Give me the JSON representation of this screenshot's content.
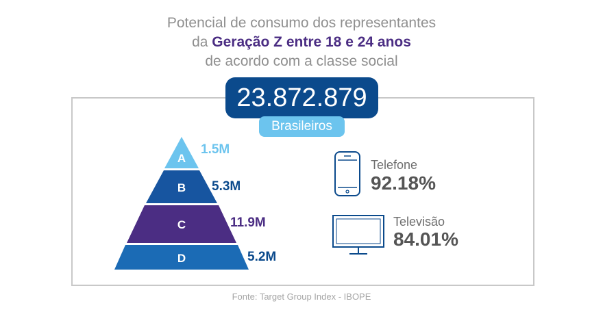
{
  "title": {
    "line1": "Potencial de consumo dos representantes",
    "line2_prefix": "da ",
    "line2_highlight": "Geração Z entre 18 e 24 anos",
    "line3": "de acordo com a classe social"
  },
  "total": {
    "value": "23.872.879",
    "label": "Brasileiros"
  },
  "pyramid": [
    {
      "class": "A",
      "value": "1.5M",
      "color": "#6cc4ee"
    },
    {
      "class": "B",
      "value": "5.3M",
      "color": "#1755a0"
    },
    {
      "class": "C",
      "value": "11.9M",
      "color": "#4b2d83"
    },
    {
      "class": "D",
      "value": "5.2M",
      "color": "#1b6bb5"
    }
  ],
  "stats": [
    {
      "label": "Telefone",
      "value": "92.18%",
      "icon": "phone-icon"
    },
    {
      "label": "Televisão",
      "value": "84.01%",
      "icon": "tv-icon"
    }
  ],
  "source": "Fonte: Target Group Index - IBOPE"
}
